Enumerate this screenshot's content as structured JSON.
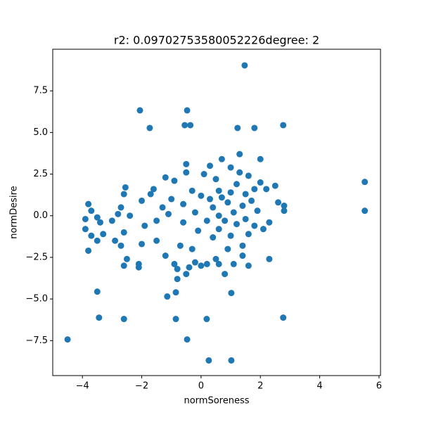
{
  "chart_data": {
    "type": "scatter",
    "title": "r2: 0.09702753580052226degree: 2",
    "xlabel": "normSoreness",
    "ylabel": "normDesire",
    "color": "#1f77b4",
    "xlim": [
      -5.0,
      6.05
    ],
    "ylim": [
      -9.6,
      10.0
    ],
    "xticks": [
      {
        "value": -4,
        "label": "−4"
      },
      {
        "value": -2,
        "label": "−2"
      },
      0,
      2,
      4,
      6
    ],
    "yticks": [
      {
        "value": -7.5,
        "label": "−7.5"
      },
      {
        "value": -5,
        "label": "−5.0"
      },
      {
        "value": -2.5,
        "label": "−2.5"
      },
      {
        "value": 0,
        "label": "0.0"
      },
      2.5,
      {
        "value": 5,
        "label": "5.0"
      },
      7.5
    ],
    "x": [
      -4.5,
      1.47,
      -2.06,
      -0.47,
      -1.73,
      -0.55,
      -0.36,
      1.23,
      1.8,
      2.77,
      5.52,
      5.52,
      -3.5,
      -3.44,
      -2.6,
      -0.85,
      0.19,
      2.77,
      -0.47,
      0.26,
      1.02,
      1.02,
      -1.14,
      -0.85,
      -3.8,
      -3.7,
      -3.9,
      -3.9,
      -3.8,
      -3.7,
      -3.5,
      -3.4,
      -3.3,
      -3.5,
      -3.0,
      -2.9,
      -2.8,
      -2.7,
      -2.6,
      -2.55,
      -2.6,
      -2.5,
      -2.6,
      -2.4,
      -2.7,
      -2.1,
      -2.1,
      -2.0,
      -2.0,
      -1.9,
      -1.7,
      -1.6,
      -1.5,
      -1.5,
      -1.3,
      -1.2,
      -1.2,
      -1.1,
      -1.0,
      -0.9,
      -0.9,
      -0.8,
      -0.8,
      -0.7,
      -0.6,
      -0.6,
      -0.5,
      -0.5,
      -0.5,
      -0.4,
      -0.3,
      -0.3,
      -0.2,
      -0.1,
      0.0,
      0.0,
      0.1,
      0.2,
      0.2,
      0.3,
      0.3,
      0.4,
      0.4,
      0.5,
      0.5,
      0.6,
      0.6,
      0.6,
      0.7,
      0.7,
      0.8,
      0.8,
      0.9,
      0.9,
      1.0,
      1.0,
      1.0,
      1.1,
      1.1,
      1.2,
      1.2,
      1.3,
      1.3,
      1.4,
      1.4,
      1.4,
      1.5,
      1.5,
      1.6,
      1.6,
      1.7,
      1.8,
      1.8,
      1.9,
      2.0,
      2.0,
      2.1,
      2.2,
      2.3,
      2.3,
      2.5,
      2.6,
      2.8,
      2.8,
      1.6,
      -0.2,
      0.6
    ],
    "y": [
      -7.43,
      9.03,
      6.33,
      6.33,
      5.27,
      5.44,
      5.44,
      5.27,
      5.27,
      5.44,
      2.03,
      0.3,
      -4.56,
      -6.12,
      -6.2,
      -6.2,
      -6.2,
      -6.12,
      -7.43,
      -8.69,
      -8.69,
      -4.64,
      -4.85,
      -4.6,
      0.7,
      0.3,
      -0.2,
      -0.8,
      -2.1,
      -1.2,
      -0.1,
      -0.4,
      -1.1,
      -1.5,
      -0.3,
      -1.5,
      0.1,
      0.5,
      1.3,
      1.7,
      -1.0,
      -2.6,
      -3.0,
      0.0,
      -1.8,
      -2.9,
      -3.1,
      -1.7,
      0.9,
      -0.6,
      1.3,
      1.6,
      -0.3,
      -1.5,
      0.5,
      -2.4,
      2.3,
      0.1,
      1.0,
      2.1,
      -2.9,
      -3.2,
      -3.8,
      -1.8,
      0.7,
      -0.4,
      3.1,
      2.6,
      -3.5,
      -3.1,
      1.5,
      -2.0,
      0.2,
      -0.9,
      1.2,
      -3.0,
      2.5,
      -0.3,
      -2.9,
      3.0,
      1.0,
      0.5,
      -1.3,
      2.2,
      -2.6,
      0.0,
      1.5,
      -0.8,
      3.4,
      1.1,
      -0.3,
      -3.5,
      0.8,
      -2.0,
      2.9,
      1.4,
      -1.2,
      0.2,
      -2.9,
      1.9,
      -0.5,
      3.7,
      2.6,
      0.6,
      -1.8,
      -2.4,
      1.3,
      -0.2,
      2.4,
      -1.1,
      0.9,
      1.6,
      -0.6,
      0.3,
      3.4,
      2.0,
      -0.8,
      1.6,
      -0.4,
      -2.6,
      1.8,
      0.8,
      0.6,
      0.3,
      -3.0,
      -2.8,
      -2.9
    ]
  }
}
